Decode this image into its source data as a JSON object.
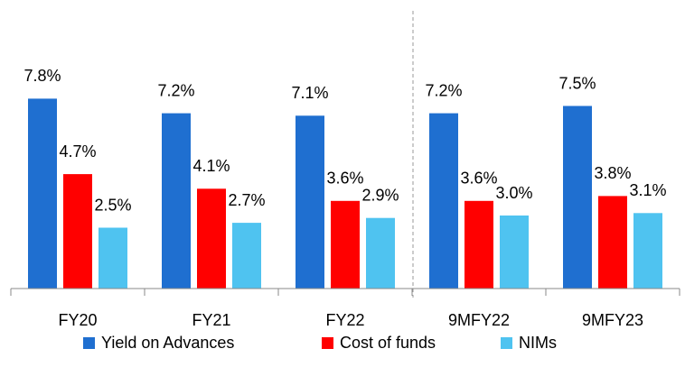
{
  "chart_data": {
    "type": "bar",
    "categories": [
      "FY20",
      "FY21",
      "FY22",
      "9MFY22",
      "9MFY23"
    ],
    "series": [
      {
        "name": "Yield on Advances",
        "color": "#1f6fd0",
        "values": [
          7.8,
          7.2,
          7.1,
          7.2,
          7.5
        ],
        "value_labels": [
          "7.8%",
          "7.2%",
          "7.1%",
          "7.2%",
          "7.5%"
        ]
      },
      {
        "name": "Cost of funds",
        "color": "#ff0000",
        "values": [
          4.7,
          4.1,
          3.6,
          3.6,
          3.8
        ],
        "value_labels": [
          "4.7%",
          "4.1%",
          "3.6%",
          "3.6%",
          "3.8%"
        ]
      },
      {
        "name": "NIMs",
        "color": "#4fc3f0",
        "values": [
          2.5,
          2.7,
          2.9,
          3.0,
          3.1
        ],
        "value_labels": [
          "2.5%",
          "2.7%",
          "2.9%",
          "3.0%",
          "3.1%"
        ]
      }
    ],
    "ylim": [
      0,
      10
    ]
  }
}
